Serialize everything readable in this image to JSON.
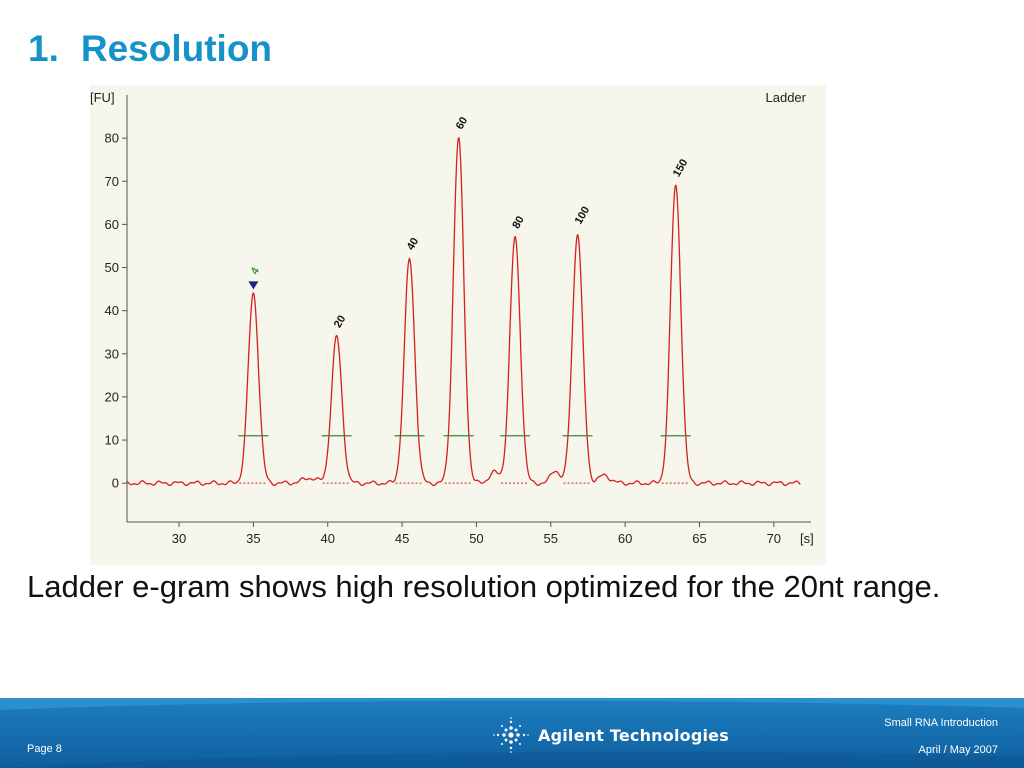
{
  "slide": {
    "number": "1.",
    "title": "Resolution",
    "caption": "Ladder e-gram shows high resolution optimized for the 20nt range."
  },
  "chart_data": {
    "type": "line",
    "legend": "Ladder",
    "ylabel": "[FU]",
    "xlabel": "[s]",
    "xlim": [
      26.5,
      72.5
    ],
    "ylim": [
      -9,
      90
    ],
    "x_ticks": [
      30,
      35,
      40,
      45,
      50,
      55,
      60,
      65,
      70
    ],
    "y_ticks": [
      0,
      10,
      20,
      30,
      40,
      50,
      60,
      70,
      80
    ],
    "grid": false,
    "peaks": [
      {
        "label": "4",
        "x": 35.0,
        "y": 44,
        "marker": true
      },
      {
        "label": "20",
        "x": 40.6,
        "y": 34
      },
      {
        "label": "40",
        "x": 45.5,
        "y": 52
      },
      {
        "label": "60",
        "x": 48.8,
        "y": 80
      },
      {
        "label": "80",
        "x": 52.6,
        "y": 57
      },
      {
        "label": "100",
        "x": 56.8,
        "y": 58
      },
      {
        "label": "150",
        "x": 63.4,
        "y": 69
      }
    ],
    "colors": {
      "trace": "#d42020",
      "plot_bg": "#f7f6ec",
      "marker": "#1a237e",
      "first_label": "#3a9a3a",
      "integration_line": "#2f8a3a",
      "axis_text": "#222222"
    }
  },
  "footer": {
    "page": "Page 8",
    "topic": "Small RNA Introduction",
    "date": "April / May 2007",
    "logo": "Agilent Technologies",
    "logo_icon": "agilent-spark-icon"
  }
}
